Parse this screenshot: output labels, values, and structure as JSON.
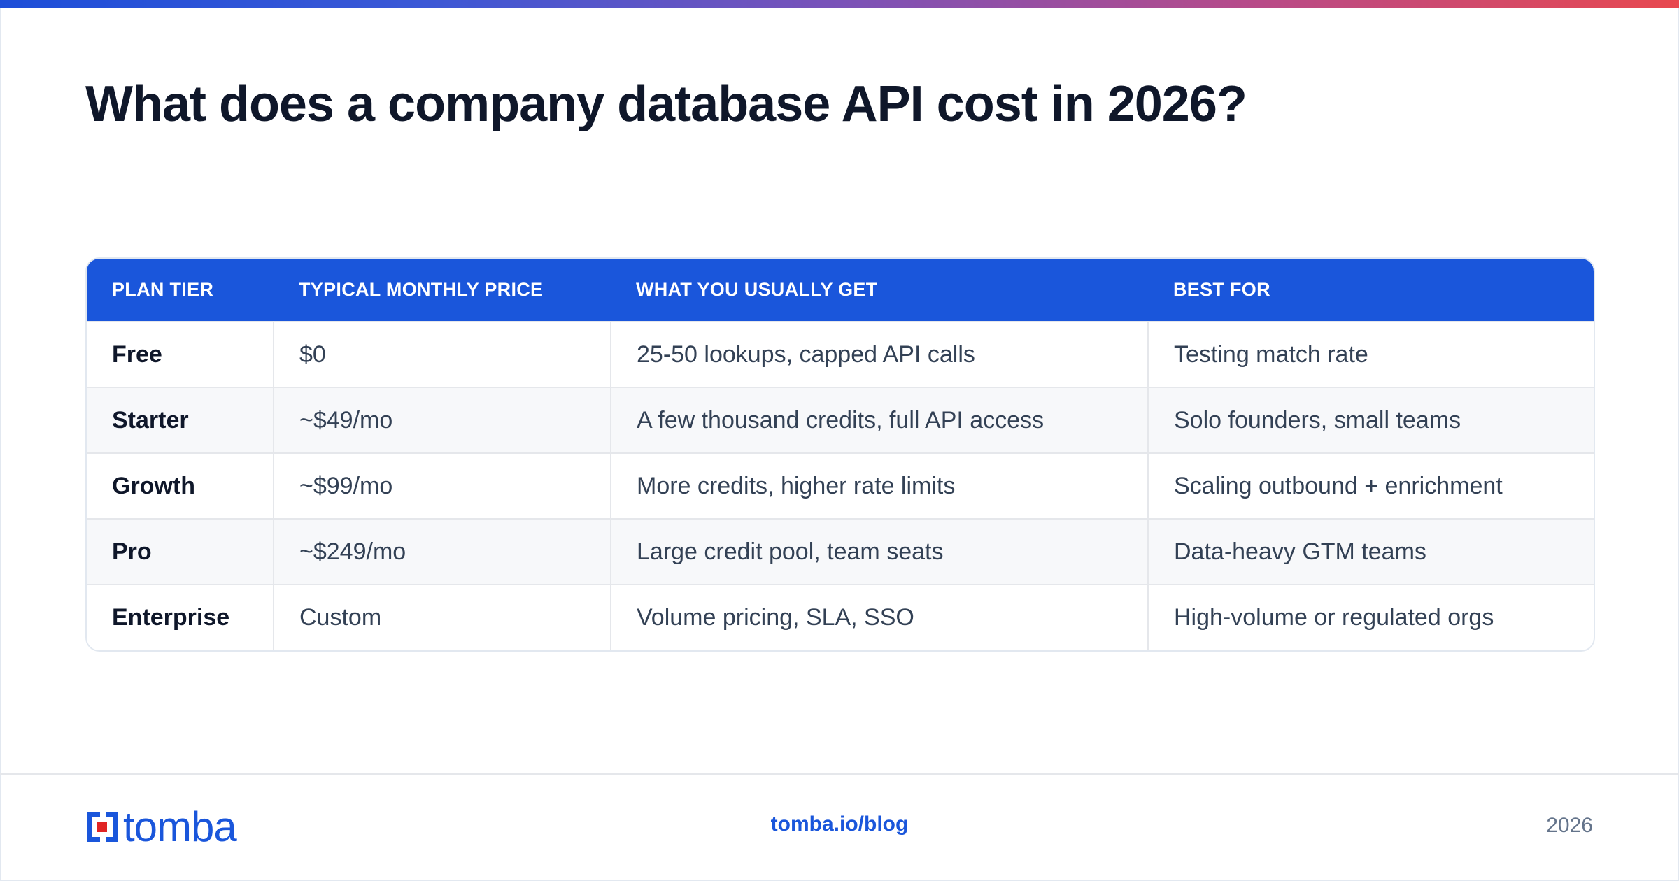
{
  "page": {
    "title": "What does a company database API cost in 2026?"
  },
  "colors": {
    "accent": "#1a56db",
    "title_text": "#0f172a",
    "body_text": "#334155",
    "muted_text": "#64748b",
    "row_alt": "#f7f8fa",
    "gradient_start": "#1d4ed8",
    "gradient_end": "#e8484f"
  },
  "table": {
    "headers": [
      "PLAN TIER",
      "TYPICAL MONTHLY PRICE",
      "WHAT YOU USUALLY GET",
      "BEST FOR"
    ],
    "rows": [
      [
        "Free",
        "$0",
        "25-50 lookups, capped API calls",
        "Testing match rate"
      ],
      [
        "Starter",
        "~$49/mo",
        "A few thousand credits, full API access",
        "Solo founders, small teams"
      ],
      [
        "Growth",
        "~$99/mo",
        "More credits, higher rate limits",
        "Scaling outbound + enrichment"
      ],
      [
        "Pro",
        "~$249/mo",
        "Large credit pool, team seats",
        "Data-heavy GTM teams"
      ],
      [
        "Enterprise",
        "Custom",
        "Volume pricing, SLA, SSO",
        "High-volume or regulated orgs"
      ]
    ]
  },
  "footer": {
    "logo_text": "tomba",
    "logo_icon": "tomba-logo-icon",
    "url": "tomba.io/blog",
    "year": "2026"
  }
}
